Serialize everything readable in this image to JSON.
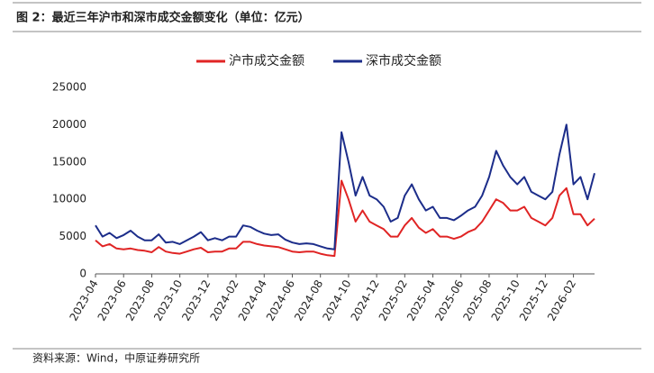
{
  "chart_data": {
    "type": "line",
    "title": "图 2：最近三年沪市和深市成交金额变化（单位：亿元）",
    "source": "资料来源：Wind，中原证券研究所",
    "categories": [
      "2023-04",
      null,
      null,
      null,
      "2023-06",
      null,
      null,
      null,
      "2023-08",
      null,
      null,
      null,
      "2023-10",
      null,
      null,
      null,
      "2023-12",
      null,
      null,
      null,
      "2024-02",
      null,
      null,
      null,
      "2024-04",
      null,
      null,
      null,
      "2024-06",
      null,
      null,
      null,
      "2024-08",
      null,
      null,
      null,
      "2024-10",
      null,
      null,
      null,
      "2024-12",
      null,
      null,
      null,
      "2025-02",
      null,
      null,
      null,
      "2025-04",
      null,
      null,
      null,
      "2025-06",
      null,
      null,
      null,
      "2025-08",
      null,
      null,
      null,
      "2025-10",
      null,
      null,
      null,
      "2025-12",
      null,
      null,
      null,
      "2026-02",
      null,
      null,
      null
    ],
    "series": [
      {
        "name": "沪市成交金额",
        "color": "#e02424",
        "values": [
          4500,
          3700,
          4000,
          3400,
          3300,
          3400,
          3200,
          3100,
          2900,
          3600,
          3000,
          2800,
          2700,
          3000,
          3300,
          3500,
          2900,
          3000,
          3000,
          3400,
          3400,
          4300,
          4300,
          4000,
          3800,
          3700,
          3600,
          3300,
          3000,
          2900,
          3000,
          3000,
          2700,
          2500,
          2400,
          12500,
          10000,
          7000,
          8500,
          7000,
          6500,
          6000,
          5000,
          5000,
          6500,
          7500,
          6200,
          5500,
          6000,
          5000,
          5000,
          4700,
          5000,
          5600,
          6000,
          7000,
          8500,
          10000,
          9500,
          8500,
          8500,
          9000,
          7500,
          7000,
          6500,
          7500,
          10500,
          11500,
          8000,
          8000,
          6500,
          7400
        ]
      },
      {
        "name": "深市成交金额",
        "color": "#1c2d8a",
        "values": [
          6500,
          5000,
          5500,
          4800,
          5200,
          5800,
          5000,
          4500,
          4500,
          5300,
          4200,
          4300,
          4000,
          4500,
          5000,
          5600,
          4500,
          4800,
          4500,
          5000,
          5000,
          6500,
          6300,
          5800,
          5400,
          5200,
          5300,
          4600,
          4200,
          4000,
          4100,
          4000,
          3700,
          3400,
          3300,
          19000,
          15000,
          10500,
          13000,
          10500,
          10000,
          9000,
          7000,
          7500,
          10500,
          12000,
          10000,
          8500,
          9000,
          7500,
          7500,
          7200,
          7800,
          8500,
          9000,
          10500,
          13000,
          16500,
          14500,
          13000,
          12000,
          13000,
          11000,
          10500,
          10000,
          11000,
          16000,
          20000,
          12000,
          13000,
          10000,
          13500
        ]
      }
    ],
    "ylim": [
      0,
      25000
    ],
    "yticks": [
      0,
      5000,
      10000,
      15000,
      20000,
      25000
    ],
    "grid": false,
    "legend": "top"
  }
}
